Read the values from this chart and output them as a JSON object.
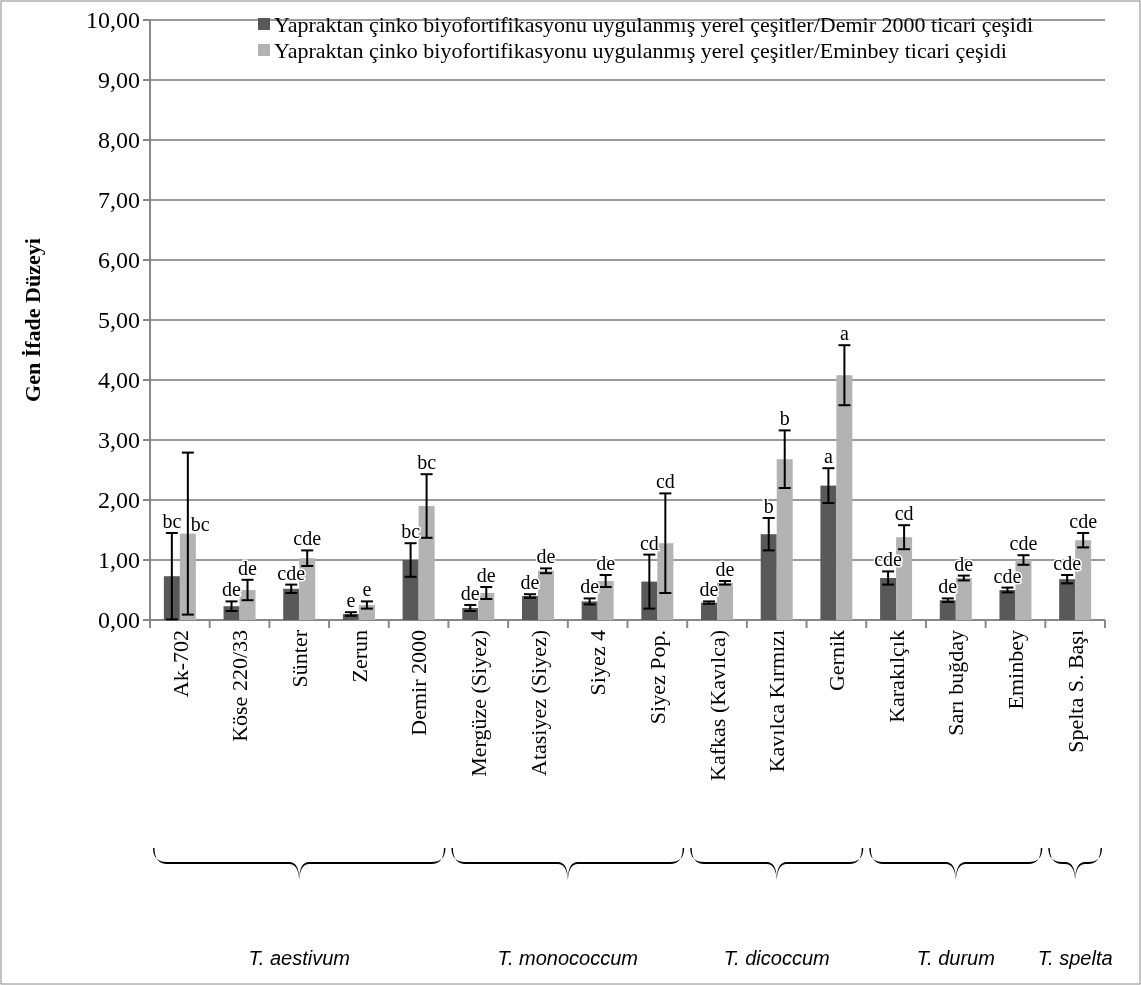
{
  "chart_data": {
    "type": "bar",
    "ylabel": "Gen İfade Düzeyi",
    "categories": [
      "Ak-702",
      "Köse 220/33",
      "Sünter",
      "Zerun",
      "Demir 2000",
      "Mergüze (Siyez)",
      "Atasiyez (Siyez)",
      "Siyez 4",
      "Siyez Pop.",
      "Kafkas (Kavılca)",
      "Kavılca Kırmızı",
      "Gernik",
      "Karakılçık",
      "Sarı buğday",
      "Eminbey",
      "Spelta S. Başı"
    ],
    "series": [
      {
        "name": "Yapraktan çinko biyofortifikasyonu uygulanmış yerel çeşitler/Demir 2000 ticari çeşidi",
        "color": "#595959",
        "values": [
          0.73,
          0.23,
          0.52,
          0.1,
          1.0,
          0.2,
          0.4,
          0.31,
          0.64,
          0.29,
          1.43,
          2.24,
          0.7,
          0.33,
          0.5,
          0.68
        ],
        "errors": [
          0.72,
          0.08,
          0.07,
          0.03,
          0.28,
          0.05,
          0.03,
          0.05,
          0.45,
          0.02,
          0.27,
          0.29,
          0.11,
          0.03,
          0.04,
          0.07
        ],
        "value_labels": [
          "bc",
          "de",
          "cde",
          "e",
          "bc",
          "de",
          "de",
          "de",
          "cd",
          "de",
          "b",
          "a",
          "cde",
          "de",
          "cde",
          "cde"
        ]
      },
      {
        "name": "Yapraktan çinko biyofortifikasyonu uygulanmış yerel çeşitler/Eminbey ticari çeşidi",
        "color": "#b3b3b3",
        "values": [
          1.44,
          0.5,
          1.03,
          0.25,
          1.9,
          0.45,
          0.82,
          0.65,
          1.28,
          0.62,
          2.68,
          4.08,
          1.38,
          0.7,
          1.0,
          1.33
        ],
        "errors": [
          1.35,
          0.17,
          0.13,
          0.06,
          0.53,
          0.1,
          0.04,
          0.1,
          0.83,
          0.03,
          0.48,
          0.5,
          0.2,
          0.04,
          0.08,
          0.12
        ],
        "value_labels": [
          "bc",
          "de",
          "cde",
          "e",
          "bc",
          "de",
          "de",
          "de",
          "cd",
          "de",
          "b",
          "a",
          "cd",
          "de",
          "cde",
          "cde"
        ]
      }
    ],
    "ylim": [
      0,
      10
    ],
    "yticks": [
      {
        "value": 0,
        "label": "0,00"
      },
      {
        "value": 1,
        "label": "1,00"
      },
      {
        "value": 2,
        "label": "2,00"
      },
      {
        "value": 3,
        "label": "3,00"
      },
      {
        "value": 4,
        "label": "4,00"
      },
      {
        "value": 5,
        "label": "5,00"
      },
      {
        "value": 6,
        "label": "6,00"
      },
      {
        "value": 7,
        "label": "7,00"
      },
      {
        "value": 8,
        "label": "8,00"
      },
      {
        "value": 9,
        "label": "9,00"
      },
      {
        "value": 10,
        "label": "10,00"
      }
    ],
    "grid": "y",
    "legend": "top left",
    "annotations": [
      "T. aestivum",
      "T. monococcum",
      "T. dicoccum",
      "T. durum",
      "T. spelta"
    ]
  }
}
